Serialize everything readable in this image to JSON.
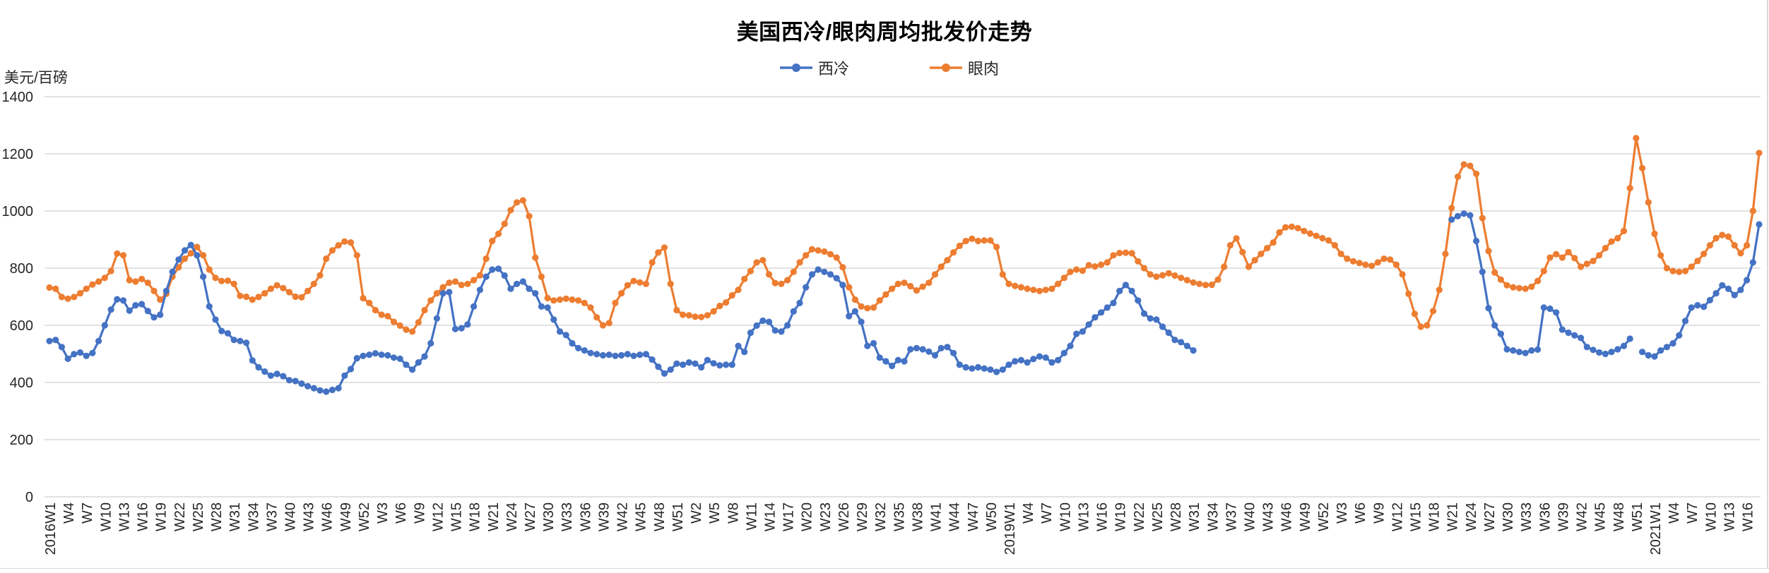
{
  "chart": {
    "title": "美国西冷/眼肉周均批发价走势",
    "y_unit": "美元/百磅",
    "legend": [
      {
        "label": "西冷",
        "color": "#4472C4"
      },
      {
        "label": "眼肉",
        "color": "#ED7D31"
      }
    ]
  },
  "chart_data": {
    "type": "line",
    "title": "美国西冷/眼肉周均批发价走势",
    "xlabel": "",
    "ylabel": "美元/百磅",
    "ylim": [
      0,
      1400
    ],
    "y_ticks": [
      0,
      200,
      400,
      600,
      800,
      1000,
      1200,
      1400
    ],
    "grid": "horizontal",
    "legend_position": "top",
    "x_label_rotation": -90,
    "x_tick_every": 3,
    "x_tick_labels": [
      "2016W1",
      "W4",
      "W7",
      "W10",
      "W13",
      "W16",
      "W19",
      "W22",
      "W25",
      "W28",
      "W31",
      "W34",
      "W37",
      "W40",
      "W43",
      "W46",
      "W49",
      "W52",
      "W3",
      "W6",
      "W9",
      "W12",
      "W15",
      "W18",
      "W21",
      "W24",
      "W27",
      "W30",
      "W33",
      "W36",
      "W39",
      "W42",
      "W45",
      "W48",
      "W51",
      "W2",
      "W5",
      "W8",
      "W11",
      "W14",
      "W17",
      "W20",
      "W23",
      "W26",
      "W29",
      "W32",
      "W35",
      "W38",
      "W41",
      "W44",
      "W47",
      "W50",
      "2019W1",
      "W4",
      "W7",
      "W10",
      "W13",
      "W16",
      "W19",
      "W22",
      "W25",
      "W28",
      "W31",
      "W34",
      "W37",
      "W40",
      "W43",
      "W46",
      "W49",
      "W52",
      "W3",
      "W6",
      "W9",
      "W12",
      "W15",
      "W18",
      "W21",
      "W24",
      "W27",
      "W30",
      "W33",
      "W36",
      "W39",
      "W42",
      "W45",
      "W48",
      "W51",
      "2021W1",
      "W4",
      "W7",
      "W10",
      "W13",
      "W16"
    ],
    "series": [
      {
        "name": "西冷",
        "color": "#4472C4",
        "values": [
          545,
          549,
          524,
          483,
          499,
          505,
          493,
          503,
          545,
          600,
          655,
          691,
          687,
          651,
          670,
          674,
          650,
          628,
          637,
          720,
          787,
          830,
          862,
          881,
          845,
          770,
          666,
          620,
          580,
          572,
          549,
          545,
          539,
          477,
          453,
          438,
          424,
          430,
          422,
          408,
          405,
          396,
          387,
          380,
          372,
          368,
          374,
          380,
          424,
          447,
          485,
          493,
          497,
          502,
          497,
          495,
          487,
          483,
          462,
          445,
          470,
          491,
          537,
          624,
          712,
          716,
          587,
          590,
          603,
          666,
          724,
          770,
          795,
          798,
          774,
          728,
          745,
          753,
          728,
          712,
          666,
          662,
          620,
          578,
          566,
          537,
          520,
          512,
          503,
          499,
          495,
          497,
          493,
          495,
          499,
          493,
          497,
          499,
          480,
          455,
          431,
          445,
          466,
          462,
          470,
          466,
          453,
          478,
          467,
          460,
          462,
          462,
          528,
          507,
          574,
          599,
          616,
          612,
          582,
          578,
          600,
          649,
          678,
          733,
          778,
          795,
          787,
          778,
          765,
          741,
          632,
          649,
          612,
          528,
          537,
          487,
          474,
          458,
          478,
          474,
          516,
          520,
          516,
          508,
          495,
          520,
          524,
          503,
          462,
          453,
          449,
          453,
          449,
          445,
          437,
          445,
          462,
          474,
          478,
          470,
          482,
          491,
          487,
          470,
          478,
          503,
          528,
          570,
          578,
          603,
          628,
          645,
          662,
          678,
          720,
          741,
          720,
          687,
          641,
          624,
          620,
          595,
          574,
          549,
          541,
          528,
          512,
          null,
          null,
          null,
          null,
          null,
          null,
          null,
          null,
          null,
          null,
          null,
          null,
          null,
          null,
          null,
          null,
          null,
          null,
          null,
          null,
          null,
          null,
          null,
          null,
          null,
          null,
          null,
          null,
          null,
          null,
          null,
          null,
          null,
          null,
          null,
          null,
          null,
          null,
          null,
          null,
          null,
          970,
          982,
          991,
          985,
          895,
          787,
          660,
          600,
          570,
          516,
          512,
          507,
          503,
          512,
          515,
          662,
          658,
          645,
          585,
          574,
          565,
          556,
          524,
          514,
          505,
          500,
          507,
          516,
          528,
          553,
          null,
          507,
          495,
          491,
          512,
          524,
          537,
          565,
          615,
          662,
          670,
          665,
          688,
          712,
          740,
          728,
          706,
          724,
          758,
          820,
          953
        ]
      },
      {
        "name": "眼肉",
        "color": "#ED7D31",
        "values": [
          732,
          728,
          699,
          693,
          699,
          712,
          728,
          743,
          753,
          766,
          790,
          851,
          845,
          758,
          753,
          762,
          749,
          720,
          690,
          710,
          770,
          803,
          833,
          852,
          874,
          845,
          795,
          766,
          755,
          756,
          745,
          703,
          700,
          690,
          699,
          712,
          728,
          740,
          730,
          716,
          700,
          698,
          720,
          745,
          775,
          833,
          862,
          880,
          893,
          890,
          845,
          695,
          678,
          653,
          637,
          632,
          612,
          599,
          585,
          578,
          610,
          653,
          687,
          712,
          733,
          749,
          753,
          741,
          745,
          758,
          775,
          833,
          895,
          920,
          955,
          1003,
          1030,
          1037,
          982,
          837,
          770,
          695,
          687,
          690,
          693,
          690,
          687,
          678,
          662,
          628,
          600,
          608,
          678,
          712,
          740,
          755,
          750,
          745,
          820,
          855,
          872,
          745,
          653,
          637,
          635,
          630,
          629,
          635,
          649,
          668,
          680,
          705,
          724,
          762,
          790,
          820,
          828,
          778,
          748,
          745,
          758,
          787,
          820,
          845,
          866,
          862,
          858,
          849,
          837,
          803,
          733,
          690,
          666,
          660,
          662,
          687,
          708,
          728,
          745,
          749,
          737,
          722,
          735,
          749,
          778,
          805,
          828,
          855,
          878,
          895,
          903,
          895,
          897,
          897,
          874,
          778,
          745,
          738,
          733,
          728,
          724,
          720,
          724,
          728,
          745,
          766,
          787,
          795,
          791,
          810,
          806,
          812,
          820,
          845,
          853,
          854,
          852,
          824,
          800,
          778,
          770,
          775,
          782,
          774,
          766,
          758,
          750,
          745,
          741,
          742,
          760,
          805,
          880,
          904,
          856,
          805,
          828,
          850,
          870,
          890,
          925,
          943,
          945,
          940,
          930,
          921,
          913,
          905,
          897,
          880,
          850,
          833,
          824,
          818,
          812,
          808,
          820,
          833,
          830,
          812,
          778,
          710,
          640,
          595,
          600,
          650,
          724,
          850,
          1010,
          1120,
          1163,
          1158,
          1130,
          975,
          860,
          785,
          760,
          740,
          733,
          730,
          728,
          735,
          755,
          790,
          837,
          849,
          837,
          856,
          835,
          805,
          815,
          825,
          845,
          870,
          893,
          905,
          930,
          1080,
          1255,
          1150,
          1030,
          920,
          845,
          800,
          790,
          787,
          790,
          805,
          825,
          850,
          880,
          905,
          916,
          910,
          880,
          852,
          880,
          1000,
          1203
        ]
      }
    ]
  }
}
